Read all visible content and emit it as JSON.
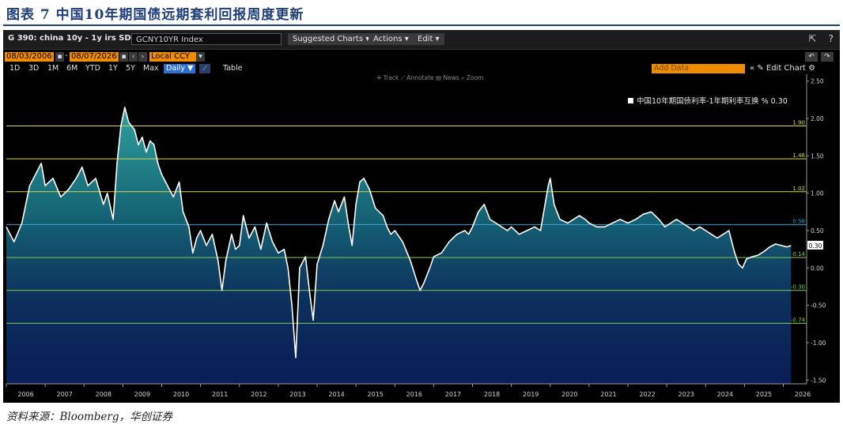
{
  "figure_title": "图表 7 中国10年期国债远期套利回报周度更新",
  "source_note": "资料来源：Bloomberg，华创证券",
  "terminal": {
    "ticker_title": "G 390: china 10y - 1y irs SD",
    "index_field": "GCNY10YR Index",
    "menus": [
      "Suggested Charts ▾",
      "Actions ▾",
      "Edit ▾"
    ],
    "start_date": "08/03/2006",
    "end_date": "08/07/2026",
    "currency": "Local CCY",
    "periods": [
      "1D",
      "3D",
      "1M",
      "6M",
      "YTD",
      "1Y",
      "5Y",
      "Max"
    ],
    "frequency": "Daily ▼",
    "table_label": "Table",
    "add_data_placeholder": "Add Data",
    "edit_chart_label": "Edit Chart",
    "tools": "✛ Track  ⟋ Annotate  ▤ News  ⌕ Zoom"
  },
  "chart_data": {
    "type": "area",
    "legend": "中国10年期国债利率-1年期利率互换 % 0.30",
    "legend_position": "top-right",
    "last_value_label": "0.30",
    "yticks": [
      -1.5,
      -1.0,
      -0.5,
      0.0,
      0.5,
      1.0,
      1.5,
      2.0,
      2.5
    ],
    "ytick_labels": [
      "-1.50",
      "-1.00",
      "-0.50",
      "0.00",
      "0.50",
      "1.00",
      "1.50",
      "2.00",
      "2.50"
    ],
    "ylim": [
      -1.55,
      2.55
    ],
    "xlim": [
      2006.0,
      2026.6
    ],
    "xticks": [
      2006,
      2007,
      2008,
      2009,
      2010,
      2011,
      2012,
      2013,
      2014,
      2015,
      2016,
      2017,
      2018,
      2019,
      2020,
      2021,
      2022,
      2023,
      2024,
      2025,
      2026
    ],
    "hlines": [
      {
        "value": 1.9,
        "label": "1.90",
        "color": "#d8d84a"
      },
      {
        "value": 1.46,
        "label": "1.46",
        "color": "#d8d84a"
      },
      {
        "value": 1.02,
        "label": "1.02",
        "color": "#d8d84a"
      },
      {
        "value": 0.58,
        "label": "0.58",
        "color": "#3aa0d8"
      },
      {
        "value": 0.14,
        "label": "0.14",
        "color": "#7ccf4a"
      },
      {
        "value": -0.3,
        "label": "-0.30",
        "color": "#7ccf4a"
      },
      {
        "value": -0.74,
        "label": "-0.74",
        "color": "#7ccf4a"
      }
    ],
    "series": [
      {
        "points": [
          [
            2006.0,
            0.55
          ],
          [
            2006.2,
            0.35
          ],
          [
            2006.4,
            0.6
          ],
          [
            2006.6,
            1.1
          ],
          [
            2006.8,
            1.3
          ],
          [
            2006.9,
            1.4
          ],
          [
            2007.0,
            1.1
          ],
          [
            2007.2,
            1.2
          ],
          [
            2007.4,
            0.95
          ],
          [
            2007.6,
            1.05
          ],
          [
            2007.8,
            1.2
          ],
          [
            2007.95,
            1.35
          ],
          [
            2008.1,
            1.1
          ],
          [
            2008.3,
            1.2
          ],
          [
            2008.5,
            0.85
          ],
          [
            2008.6,
            1.0
          ],
          [
            2008.75,
            0.65
          ],
          [
            2008.85,
            1.4
          ],
          [
            2008.95,
            1.9
          ],
          [
            2009.05,
            2.15
          ],
          [
            2009.15,
            1.95
          ],
          [
            2009.3,
            1.85
          ],
          [
            2009.4,
            1.65
          ],
          [
            2009.5,
            1.75
          ],
          [
            2009.6,
            1.55
          ],
          [
            2009.7,
            1.7
          ],
          [
            2009.8,
            1.65
          ],
          [
            2009.9,
            1.4
          ],
          [
            2010.0,
            1.25
          ],
          [
            2010.15,
            1.1
          ],
          [
            2010.3,
            0.95
          ],
          [
            2010.45,
            1.15
          ],
          [
            2010.55,
            0.75
          ],
          [
            2010.7,
            0.55
          ],
          [
            2010.8,
            0.2
          ],
          [
            2010.9,
            0.4
          ],
          [
            2011.0,
            0.5
          ],
          [
            2011.15,
            0.3
          ],
          [
            2011.3,
            0.45
          ],
          [
            2011.45,
            0.1
          ],
          [
            2011.55,
            -0.3
          ],
          [
            2011.65,
            0.1
          ],
          [
            2011.8,
            0.45
          ],
          [
            2011.9,
            0.25
          ],
          [
            2012.0,
            0.3
          ],
          [
            2012.1,
            0.7
          ],
          [
            2012.25,
            0.4
          ],
          [
            2012.4,
            0.55
          ],
          [
            2012.55,
            0.25
          ],
          [
            2012.7,
            0.6
          ],
          [
            2012.85,
            0.35
          ],
          [
            2013.0,
            0.2
          ],
          [
            2013.15,
            0.25
          ],
          [
            2013.25,
            0.0
          ],
          [
            2013.35,
            -0.5
          ],
          [
            2013.45,
            -1.2
          ],
          [
            2013.55,
            0.0
          ],
          [
            2013.7,
            0.15
          ],
          [
            2013.8,
            -0.3
          ],
          [
            2013.9,
            -0.7
          ],
          [
            2014.0,
            0.05
          ],
          [
            2014.15,
            0.3
          ],
          [
            2014.3,
            0.65
          ],
          [
            2014.45,
            0.9
          ],
          [
            2014.55,
            0.75
          ],
          [
            2014.7,
            0.95
          ],
          [
            2014.8,
            0.6
          ],
          [
            2014.9,
            0.3
          ],
          [
            2015.0,
            0.85
          ],
          [
            2015.1,
            1.15
          ],
          [
            2015.2,
            1.2
          ],
          [
            2015.35,
            1.05
          ],
          [
            2015.5,
            0.8
          ],
          [
            2015.7,
            0.7
          ],
          [
            2015.8,
            0.55
          ],
          [
            2015.9,
            0.45
          ],
          [
            2016.0,
            0.5
          ],
          [
            2016.2,
            0.35
          ],
          [
            2016.4,
            0.1
          ],
          [
            2016.55,
            -0.15
          ],
          [
            2016.65,
            -0.3
          ],
          [
            2016.75,
            -0.2
          ],
          [
            2016.9,
            0.0
          ],
          [
            2017.0,
            0.15
          ],
          [
            2017.2,
            0.2
          ],
          [
            2017.4,
            0.35
          ],
          [
            2017.6,
            0.45
          ],
          [
            2017.8,
            0.5
          ],
          [
            2017.9,
            0.45
          ],
          [
            2018.0,
            0.55
          ],
          [
            2018.15,
            0.75
          ],
          [
            2018.3,
            0.85
          ],
          [
            2018.45,
            0.65
          ],
          [
            2018.6,
            0.6
          ],
          [
            2018.75,
            0.55
          ],
          [
            2018.9,
            0.5
          ],
          [
            2019.0,
            0.55
          ],
          [
            2019.2,
            0.45
          ],
          [
            2019.4,
            0.5
          ],
          [
            2019.6,
            0.55
          ],
          [
            2019.75,
            0.5
          ],
          [
            2019.85,
            0.8
          ],
          [
            2019.95,
            1.1
          ],
          [
            2020.0,
            1.2
          ],
          [
            2020.1,
            0.85
          ],
          [
            2020.25,
            0.65
          ],
          [
            2020.45,
            0.6
          ],
          [
            2020.6,
            0.65
          ],
          [
            2020.75,
            0.7
          ],
          [
            2020.9,
            0.65
          ],
          [
            2021.0,
            0.6
          ],
          [
            2021.2,
            0.55
          ],
          [
            2021.4,
            0.55
          ],
          [
            2021.6,
            0.6
          ],
          [
            2021.8,
            0.65
          ],
          [
            2022.0,
            0.6
          ],
          [
            2022.2,
            0.65
          ],
          [
            2022.4,
            0.72
          ],
          [
            2022.6,
            0.75
          ],
          [
            2022.8,
            0.65
          ],
          [
            2022.95,
            0.55
          ],
          [
            2023.1,
            0.6
          ],
          [
            2023.25,
            0.65
          ],
          [
            2023.4,
            0.6
          ],
          [
            2023.55,
            0.55
          ],
          [
            2023.7,
            0.5
          ],
          [
            2023.85,
            0.55
          ],
          [
            2024.0,
            0.5
          ],
          [
            2024.15,
            0.45
          ],
          [
            2024.3,
            0.4
          ],
          [
            2024.45,
            0.45
          ],
          [
            2024.6,
            0.5
          ],
          [
            2024.75,
            0.2
          ],
          [
            2024.85,
            0.05
          ],
          [
            2024.95,
            0.0
          ],
          [
            2025.05,
            0.12
          ],
          [
            2025.2,
            0.15
          ],
          [
            2025.35,
            0.17
          ],
          [
            2025.5,
            0.22
          ],
          [
            2025.65,
            0.28
          ],
          [
            2025.8,
            0.32
          ],
          [
            2025.95,
            0.3
          ],
          [
            2026.1,
            0.28
          ],
          [
            2026.2,
            0.3
          ]
        ]
      }
    ]
  }
}
